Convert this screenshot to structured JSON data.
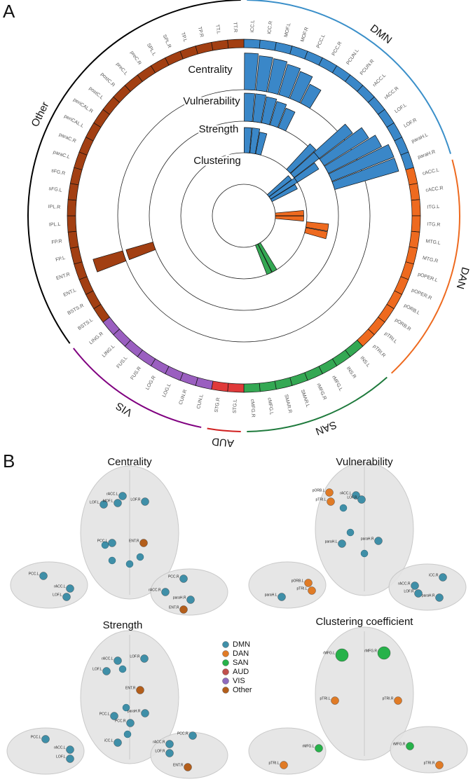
{
  "panel_labels": [
    "A",
    "B"
  ],
  "chart_data": {
    "type": "radial-bar",
    "groups": [
      {
        "name": "DMN",
        "color": "#3a87c8",
        "arc_color": "#3a8fc9",
        "regions": [
          "iCC.L",
          "iCC.R",
          "MOF.L",
          "MOF.R",
          "PCC.L",
          "PCC.R",
          "PCUN.L",
          "PCUN.R",
          "rACC.L",
          "rACC.R",
          "LOF.L",
          "LOF.R",
          "paraH.L",
          "paraH.R"
        ]
      },
      {
        "name": "DAN",
        "color": "#ee6a1f",
        "arc_color": "#ee6a1f",
        "regions": [
          "cACC.L",
          "cACC.R",
          "ITG.L",
          "ITG.R",
          "MTG.L",
          "MTG.R",
          "pOPER.L",
          "pOPER.R",
          "pORB.L",
          "pORB.R",
          "pTRI.L",
          "pTRI.R"
        ]
      },
      {
        "name": "SAN",
        "color": "#34a853",
        "arc_color": "#1e7a3c",
        "regions": [
          "INS.L",
          "INS.R",
          "rMFG.L",
          "rMFG.R",
          "SMAR.L",
          "SMAR.R",
          "cMFG.L",
          "cMFG.R"
        ]
      },
      {
        "name": "AUD",
        "color": "#e03a3a",
        "arc_color": "#d02020",
        "regions": [
          "STG.L",
          "STG.R"
        ]
      },
      {
        "name": "VIS",
        "color": "#9a5fc0",
        "arc_color": "#800080",
        "regions": [
          "CUN.L",
          "CUN.R",
          "LOG.L",
          "LOG.R",
          "FUS.R",
          "FUS.L",
          "LING.L",
          "LING.R"
        ]
      },
      {
        "name": "Other",
        "color": "#a23f12",
        "arc_color": "#000000",
        "regions": [
          "BSTS.L",
          "BSTS.R",
          "ENT.L",
          "ENT.R",
          "FP.L",
          "FP.R",
          "IPL.L",
          "IPL.R",
          "sFG.L",
          "sFG.R",
          "paraC.L",
          "paraC.R",
          "periCAL.L",
          "periCAL.R",
          "postC.L",
          "postC.R",
          "preC.L",
          "preC.R",
          "SPL.L",
          "SPL.R",
          "TP.L",
          "TP.R",
          "TT.L",
          "TT.R"
        ]
      }
    ],
    "series": [
      {
        "name": "Centrality",
        "values": [
          [
            0.95,
            0.9,
            0.88,
            0.82,
            0.75,
            0.55,
            null,
            null,
            null,
            null,
            null,
            null,
            null,
            null
          ],
          [
            null,
            null,
            null,
            null,
            null,
            null,
            null,
            null,
            null,
            null,
            null,
            null
          ],
          [
            null,
            null,
            null,
            null,
            null,
            null,
            null,
            null
          ],
          [
            null,
            null
          ],
          [
            null,
            null,
            null,
            null,
            null,
            null,
            null,
            null
          ],
          [
            null,
            null,
            null,
            0.8,
            null,
            null,
            null,
            null,
            null,
            null,
            null,
            null,
            null,
            null,
            null,
            null,
            null,
            null,
            null,
            null,
            null,
            null,
            null,
            null
          ]
        ]
      },
      {
        "name": "Vulnerability",
        "values": [
          [
            0.4,
            0.4,
            0.38,
            0.35,
            0.3,
            null,
            null,
            null,
            null,
            0.6,
            0.75,
            0.85,
            0.95,
            0.95
          ],
          [
            null,
            null,
            null,
            null,
            null,
            null,
            null,
            null,
            null,
            null,
            null,
            null
          ],
          [
            null,
            null,
            null,
            null,
            null,
            null,
            null,
            null
          ],
          [
            null,
            null
          ],
          [
            null,
            null,
            null,
            null,
            null,
            null,
            null,
            null
          ],
          [
            null,
            null,
            null,
            0.4,
            null,
            null,
            null,
            null,
            null,
            null,
            null,
            null,
            null,
            null,
            null,
            null,
            null,
            null,
            null,
            null,
            null,
            null,
            null,
            null
          ]
        ]
      },
      {
        "name": "Strength",
        "values": [
          [
            0.4,
            0.4,
            0.35,
            null,
            null,
            null,
            null,
            null,
            0.55,
            0.5,
            0.4,
            null,
            null,
            null
          ],
          [
            null,
            null,
            null,
            null,
            0.35,
            0.35,
            null,
            null,
            null,
            null,
            null,
            null
          ],
          [
            null,
            null,
            null,
            null,
            null,
            null,
            null,
            null
          ],
          [
            null,
            null
          ],
          [
            null,
            null,
            null,
            null,
            null,
            null,
            null,
            null
          ],
          [
            null,
            null,
            null,
            null,
            null,
            null,
            null,
            null,
            null,
            null,
            null,
            null,
            null,
            null,
            null,
            null,
            null,
            null,
            null,
            null,
            null,
            null,
            null,
            null
          ]
        ]
      },
      {
        "name": "Clustering",
        "values": [
          [
            null,
            null,
            null,
            null,
            null,
            null,
            null,
            null,
            null,
            0.45,
            0.5,
            0.45,
            null,
            null
          ],
          [
            null,
            null,
            0.45,
            0.45,
            null,
            null,
            null,
            null,
            null,
            null,
            null,
            null
          ],
          [
            null,
            null,
            0.5,
            0.5,
            null,
            null,
            null,
            null
          ],
          [
            null,
            null
          ],
          [
            null,
            null,
            null,
            null,
            null,
            null,
            null,
            null
          ],
          [
            null,
            null,
            null,
            null,
            null,
            null,
            null,
            null,
            null,
            null,
            null,
            null,
            null,
            null,
            null,
            null,
            null,
            null,
            null,
            null,
            null,
            null,
            null,
            null
          ]
        ]
      }
    ]
  },
  "brain_panels": {
    "legend": [
      {
        "name": "DMN",
        "color": "#3f8fa8"
      },
      {
        "name": "DAN",
        "color": "#e07b26"
      },
      {
        "name": "SAN",
        "color": "#27b24a"
      },
      {
        "name": "AUD",
        "color": "#c0504d"
      },
      {
        "name": "VIS",
        "color": "#8e6bbf"
      },
      {
        "name": "Other",
        "color": "#b35e1b"
      }
    ],
    "panels": [
      {
        "title": "Centrality",
        "nodes": [
          {
            "label": "LOF.L",
            "network": 0
          },
          {
            "label": "rACC.L",
            "network": 0
          },
          {
            "label": "MOF.L",
            "network": 0
          },
          {
            "label": "LOF.R",
            "network": 0
          },
          {
            "label": "PCC.L",
            "network": 0
          },
          {
            "label": "ENT.R",
            "network": 5
          },
          {
            "label": "PCC.L",
            "network": 0
          },
          {
            "label": "rACC.L",
            "network": 0
          },
          {
            "label": "LOF.L",
            "network": 0
          },
          {
            "label": "PCC.R",
            "network": 0
          },
          {
            "label": "rACC.R",
            "network": 0
          },
          {
            "label": "paraH.R",
            "network": 0
          },
          {
            "label": "ENT.R",
            "network": 5
          }
        ]
      },
      {
        "title": "Vulnerability",
        "nodes": [
          {
            "label": "pORB.L",
            "network": 1
          },
          {
            "label": "pTRI.L",
            "network": 1
          },
          {
            "label": "rACC.L",
            "network": 0
          },
          {
            "label": "LOF.R",
            "network": 0
          },
          {
            "label": "paraH.L",
            "network": 0
          },
          {
            "label": "paraH.R",
            "network": 0
          },
          {
            "label": "pORB.L",
            "network": 1
          },
          {
            "label": "pTRI.L",
            "network": 1
          },
          {
            "label": "paraH.L",
            "network": 0
          },
          {
            "label": "iCC.R",
            "network": 0
          },
          {
            "label": "rACC.R",
            "network": 0
          },
          {
            "label": "LOF.R",
            "network": 0
          },
          {
            "label": "paraH.R",
            "network": 0
          }
        ]
      },
      {
        "title": "Strength",
        "nodes": [
          {
            "label": "rACC.L",
            "network": 0
          },
          {
            "label": "LOF.L",
            "network": 0
          },
          {
            "label": "LOF.R",
            "network": 0
          },
          {
            "label": "ENT.R",
            "network": 5
          },
          {
            "label": "PCC.L",
            "network": 0
          },
          {
            "label": "PCC.R",
            "network": 0
          },
          {
            "label": "paraH.R",
            "network": 0
          },
          {
            "label": "iCC.L",
            "network": 0
          },
          {
            "label": "PCC.L",
            "network": 0
          },
          {
            "label": "rACC.L",
            "network": 0
          },
          {
            "label": "LOF.L",
            "network": 0
          },
          {
            "label": "PCC.R",
            "network": 0
          },
          {
            "label": "rACC.R",
            "network": 0
          },
          {
            "label": "LOF.R",
            "network": 0
          },
          {
            "label": "ENT.R",
            "network": 5
          }
        ]
      },
      {
        "title": "Clustering coefficient",
        "nodes": [
          {
            "label": "rMFG.L",
            "network": 2
          },
          {
            "label": "rMFG.R",
            "network": 2
          },
          {
            "label": "pTRI.L",
            "network": 1
          },
          {
            "label": "pTRI.R",
            "network": 1
          },
          {
            "label": "rMFG.L",
            "network": 2
          },
          {
            "label": "pTRI.L",
            "network": 1
          },
          {
            "label": "rMFG.R",
            "network": 2
          },
          {
            "label": "pTRI.R",
            "network": 1
          }
        ]
      }
    ]
  }
}
